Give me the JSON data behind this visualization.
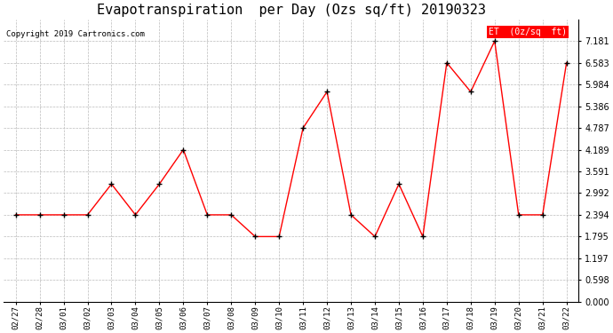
{
  "title": "Evapotranspiration  per Day (Ozs sq/ft) 20190323",
  "copyright": "Copyright 2019 Cartronics.com",
  "legend_label": "ET  (0z/sq  ft)",
  "x_labels": [
    "02/27",
    "02/28",
    "03/01",
    "03/02",
    "03/03",
    "03/04",
    "03/05",
    "03/06",
    "03/07",
    "03/08",
    "03/09",
    "03/10",
    "03/11",
    "03/12",
    "03/13",
    "03/14",
    "03/15",
    "03/16",
    "03/17",
    "03/18",
    "03/19",
    "03/20",
    "03/21",
    "03/22"
  ],
  "y_values": [
    2.394,
    2.394,
    2.394,
    2.394,
    3.242,
    2.394,
    3.242,
    4.189,
    2.394,
    2.394,
    1.795,
    1.795,
    4.787,
    5.784,
    2.394,
    1.795,
    3.242,
    1.795,
    6.583,
    5.784,
    7.181,
    2.394,
    2.394,
    6.583
  ],
  "yticks": [
    0.0,
    0.598,
    1.197,
    1.795,
    2.394,
    2.992,
    3.591,
    4.189,
    4.787,
    5.386,
    5.984,
    6.583,
    7.181
  ],
  "ylim": [
    0.0,
    7.78
  ],
  "line_color": "red",
  "marker": "+",
  "marker_color": "black",
  "bg_color": "white",
  "grid_color": "#bbbbbb",
  "title_fontsize": 11,
  "legend_bg": "red",
  "legend_fg": "white"
}
